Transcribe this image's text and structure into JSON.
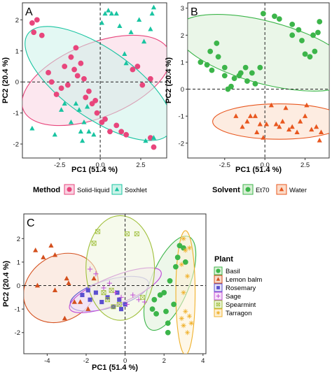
{
  "chart_data": [
    {
      "panel": "A",
      "type": "scatter",
      "xlabel": "PC1 (51.4 %)",
      "ylabel": "PC2 (20.4 %)",
      "xlim": [
        -4.8,
        4.1
      ],
      "ylim": [
        -2.45,
        2.55
      ],
      "xticks": [
        -2.5,
        0.0,
        2.5
      ],
      "yticks": [
        -2,
        -1,
        0,
        1,
        2
      ],
      "legend": {
        "title": "Method",
        "position": "bottom"
      },
      "ellipses": [
        {
          "series": 0,
          "cx": -0.25,
          "cy": 0.05,
          "rx": 3.5,
          "ry": 1.65,
          "angle": -22
        },
        {
          "series": 1,
          "cx": -0.1,
          "cy": -0.05,
          "rx": 3.85,
          "ry": 1.55,
          "angle": 35
        }
      ],
      "series": [
        {
          "name": "Solid-liquid",
          "marker": "circle",
          "color": "#e8467c",
          "fill": "#f9d3e2",
          "points": [
            [
              -4.2,
              1.9
            ],
            [
              -4.1,
              1.6
            ],
            [
              -3.9,
              2.0
            ],
            [
              -3.6,
              1.5
            ],
            [
              -3.2,
              0.3
            ],
            [
              -3.0,
              0.0
            ],
            [
              -2.7,
              -0.4
            ],
            [
              -2.4,
              -0.2
            ],
            [
              -2.2,
              0.5
            ],
            [
              -2.0,
              -0.1
            ],
            [
              -1.8,
              0.8
            ],
            [
              -1.6,
              0.4
            ],
            [
              -1.4,
              0.2
            ],
            [
              -1.2,
              0.6
            ],
            [
              -1.0,
              0.1
            ],
            [
              -0.9,
              -0.5
            ],
            [
              -0.7,
              -0.3
            ],
            [
              -0.5,
              -0.7
            ],
            [
              -0.3,
              -0.6
            ],
            [
              -0.2,
              -1.0
            ],
            [
              0.1,
              -1.3
            ],
            [
              0.3,
              -1.2
            ],
            [
              0.6,
              -1.6
            ],
            [
              1.0,
              -1.4
            ],
            [
              1.3,
              -1.6
            ],
            [
              1.6,
              -1.7
            ],
            [
              2.0,
              0.4
            ],
            [
              2.3,
              0.5
            ],
            [
              2.6,
              -0.1
            ],
            [
              3.1,
              -1.8
            ],
            [
              3.3,
              -2.1
            ],
            [
              3.1,
              0.1
            ],
            [
              -1.5,
              1.1
            ]
          ]
        },
        {
          "name": "Soxhlet",
          "marker": "triangle",
          "color": "#19c4a1",
          "fill": "#ccf3e9",
          "points": [
            [
              -4.2,
              -1.5
            ],
            [
              -2.8,
              -1.7
            ],
            [
              -2.4,
              -0.9
            ],
            [
              -2.2,
              -0.7
            ],
            [
              -1.8,
              -1.3
            ],
            [
              -1.5,
              -0.7
            ],
            [
              -1.3,
              -0.9
            ],
            [
              -1.2,
              -1.6
            ],
            [
              -1.0,
              -1.3
            ],
            [
              -0.8,
              -0.8
            ],
            [
              -0.7,
              -1.6
            ],
            [
              -0.4,
              -1.7
            ],
            [
              0.1,
              1.9
            ],
            [
              0.3,
              2.2
            ],
            [
              0.5,
              2.3
            ],
            [
              0.7,
              2.2
            ],
            [
              1.0,
              2.2
            ],
            [
              1.2,
              1.8
            ],
            [
              1.5,
              0.9
            ],
            [
              1.9,
              1.6
            ],
            [
              2.4,
              2.0
            ],
            [
              2.7,
              1.3
            ],
            [
              3.1,
              1.7
            ],
            [
              3.2,
              2.2
            ],
            [
              3.3,
              2.4
            ],
            [
              2.8,
              -1.9
            ],
            [
              3.3,
              -1.8
            ],
            [
              -1.1,
              -1.9
            ],
            [
              1.6,
              0.6
            ]
          ]
        }
      ]
    },
    {
      "panel": "B",
      "type": "scatter",
      "xlabel": "PC1 (51.4 %)",
      "ylabel": "PC2 (20.4 %)",
      "xlim": [
        -4.8,
        4.0
      ],
      "ylim": [
        -2.55,
        3.2
      ],
      "xticks": [
        -2.5,
        0.0,
        2.5
      ],
      "yticks": [
        -2,
        -1,
        0,
        1,
        2,
        3
      ],
      "legend": {
        "title": "Solvent",
        "position": "bottom"
      },
      "ellipses": [
        {
          "series": 0,
          "cx": 0.05,
          "cy": 1.35,
          "rx": 4.4,
          "ry": 1.5,
          "angle": 15
        },
        {
          "series": 1,
          "cx": 0.9,
          "cy": -1.2,
          "rx": 3.2,
          "ry": 0.85,
          "angle": 0
        }
      ],
      "series": [
        {
          "name": "Et70",
          "marker": "circle",
          "color": "#3cb54a",
          "fill": "#d8efd5",
          "points": [
            [
              -4.0,
              1.0
            ],
            [
              -3.6,
              0.9
            ],
            [
              -3.3,
              0.7
            ],
            [
              -3.4,
              1.4
            ],
            [
              -3.0,
              1.7
            ],
            [
              -2.9,
              1.2
            ],
            [
              -2.5,
              0.8
            ],
            [
              -2.5,
              0.5
            ],
            [
              -2.3,
              0.0
            ],
            [
              -2.1,
              0.1
            ],
            [
              -1.9,
              0.4
            ],
            [
              -1.6,
              0.5
            ],
            [
              -1.5,
              0.6
            ],
            [
              -1.2,
              0.8
            ],
            [
              -1.1,
              0.3
            ],
            [
              -0.8,
              0.6
            ],
            [
              -0.6,
              0.2
            ],
            [
              -0.3,
              0.8
            ],
            [
              -0.1,
              2.8
            ],
            [
              0.6,
              2.7
            ],
            [
              0.9,
              2.6
            ],
            [
              1.7,
              2.4
            ],
            [
              1.7,
              2.0
            ],
            [
              2.1,
              2.2
            ],
            [
              2.3,
              1.8
            ],
            [
              2.5,
              1.3
            ],
            [
              2.8,
              1.2
            ],
            [
              3.0,
              2.0
            ],
            [
              3.1,
              1.4
            ],
            [
              3.3,
              2.1
            ],
            [
              3.4,
              2.5
            ]
          ]
        },
        {
          "name": "Water",
          "marker": "triangle",
          "color": "#e8571f",
          "fill": "#fbdcc9",
          "points": [
            [
              -1.8,
              -1.0
            ],
            [
              -1.4,
              -1.4
            ],
            [
              -1.1,
              -1.2
            ],
            [
              -0.9,
              -1.0
            ],
            [
              -0.6,
              -1.0
            ],
            [
              -0.5,
              -1.6
            ],
            [
              -0.3,
              -1.3
            ],
            [
              -0.1,
              -1.8
            ],
            [
              0.1,
              -1.3
            ],
            [
              0.4,
              -0.6
            ],
            [
              0.7,
              -1.3
            ],
            [
              0.9,
              -1.4
            ],
            [
              1.1,
              -1.2
            ],
            [
              1.3,
              -0.7
            ],
            [
              1.5,
              -1.5
            ],
            [
              1.7,
              -1.4
            ],
            [
              2.0,
              -1.6
            ],
            [
              2.2,
              -1.2
            ],
            [
              2.5,
              -1.0
            ],
            [
              2.6,
              -0.6
            ],
            [
              2.9,
              -1.5
            ],
            [
              3.2,
              -1.4
            ],
            [
              3.4,
              -1.9
            ],
            [
              3.5,
              -1.6
            ]
          ]
        }
      ]
    },
    {
      "panel": "C",
      "type": "scatter",
      "xlabel": "PC1 (51.4 %)",
      "ylabel": "PC2 (20.4 %)",
      "xlim": [
        -5.2,
        4.15
      ],
      "ylim": [
        -2.9,
        3.05
      ],
      "xticks": [
        -4,
        -2,
        0,
        2,
        4
      ],
      "yticks": [
        -2,
        -1,
        0,
        1,
        2
      ],
      "legend": {
        "title": "Plant",
        "position": "right"
      },
      "ellipses": [
        {
          "series": 0,
          "cx": 2.3,
          "cy": 0.1,
          "rx": 2.35,
          "ry": 0.9,
          "angle": -68
        },
        {
          "series": 1,
          "cx": -3.3,
          "cy": -0.1,
          "rx": 1.85,
          "ry": 1.5,
          "angle": -35
        },
        {
          "series": 2,
          "cx": -0.8,
          "cy": -0.35,
          "rx": 1.9,
          "ry": 0.65,
          "angle": -16
        },
        {
          "series": 3,
          "cx": -0.5,
          "cy": -0.2,
          "rx": 2.3,
          "ry": 0.65,
          "angle": -22
        },
        {
          "series": 4,
          "cx": -0.25,
          "cy": 0.75,
          "rx": 1.6,
          "ry": 2.45,
          "angle": 0
        },
        {
          "series": 5,
          "cx": 3.1,
          "cy": -0.3,
          "rx": 0.45,
          "ry": 2.9,
          "angle": 0
        }
      ],
      "series": [
        {
          "name": "Basil",
          "marker": "circle",
          "color": "#3cb54a",
          "fill": "#dff1d8",
          "points": [
            [
              1.4,
              -1.0
            ],
            [
              1.5,
              -0.6
            ],
            [
              1.6,
              -1.2
            ],
            [
              1.8,
              -0.4
            ],
            [
              2.0,
              -0.3
            ],
            [
              2.1,
              -1.1
            ],
            [
              2.2,
              -1.6
            ],
            [
              2.3,
              0.2
            ],
            [
              2.5,
              -0.8
            ],
            [
              2.6,
              0.8
            ],
            [
              2.7,
              1.2
            ],
            [
              2.8,
              1.7
            ],
            [
              3.0,
              1.6
            ],
            [
              3.1,
              1.0
            ],
            [
              2.2,
              -2.0
            ]
          ]
        },
        {
          "name": "Lemon balm",
          "marker": "triangle",
          "color": "#d4501e",
          "fill": "#f7dccd",
          "points": [
            [
              -4.6,
              1.5
            ],
            [
              -4.2,
              1.2
            ],
            [
              -3.8,
              1.7
            ],
            [
              -3.6,
              1.3
            ],
            [
              -3.0,
              0.3
            ],
            [
              -2.9,
              0.1
            ],
            [
              -3.6,
              -0.2
            ],
            [
              -2.3,
              -0.7
            ],
            [
              -4.5,
              0.0
            ],
            [
              -3.1,
              -1.4
            ],
            [
              -2.6,
              -0.7
            ],
            [
              -1.9,
              -1.0
            ],
            [
              -1.6,
              0.3
            ]
          ]
        },
        {
          "name": "Rosemary",
          "marker": "square",
          "color": "#5a4fcf",
          "fill": "#e5e3f8",
          "points": [
            [
              -2.2,
              -0.4
            ],
            [
              -1.8,
              -0.6
            ],
            [
              -1.5,
              -0.3
            ],
            [
              -1.2,
              -0.7
            ],
            [
              -0.9,
              -0.5
            ],
            [
              -0.6,
              -0.9
            ],
            [
              -0.3,
              -0.6
            ],
            [
              0.0,
              -0.8
            ],
            [
              -1.9,
              -0.2
            ],
            [
              -0.4,
              -0.3
            ],
            [
              -0.2,
              -1.0
            ]
          ]
        },
        {
          "name": "Sage",
          "marker": "plus",
          "color": "#c04fd6",
          "fill": "#f5e1f8",
          "points": [
            [
              -1.5,
              0.5
            ],
            [
              -1.1,
              -0.1
            ],
            [
              -0.8,
              0.1
            ],
            [
              -0.5,
              -0.3
            ],
            [
              -0.2,
              -0.5
            ],
            [
              0.1,
              -0.8
            ],
            [
              0.4,
              -0.4
            ],
            [
              0.7,
              -0.6
            ],
            [
              1.0,
              -0.7
            ],
            [
              -1.8,
              0.7
            ]
          ]
        },
        {
          "name": "Spearmint",
          "marker": "xbox",
          "color": "#9fbf3a",
          "fill": "#eef6dc",
          "points": [
            [
              -1.4,
              2.3
            ],
            [
              -1.6,
              1.8
            ],
            [
              -0.9,
              -0.6
            ],
            [
              -0.6,
              -0.9
            ],
            [
              -0.3,
              -0.8
            ],
            [
              0.1,
              2.2
            ],
            [
              0.6,
              2.2
            ],
            [
              0.9,
              -0.5
            ],
            [
              -1.1,
              -0.3
            ],
            [
              -0.7,
              -0.2
            ]
          ]
        },
        {
          "name": "Tarragon",
          "marker": "star",
          "color": "#f0b12c",
          "fill": "#fdf0d4",
          "points": [
            [
              3.0,
              2.0
            ],
            [
              3.1,
              1.5
            ],
            [
              3.3,
              1.6
            ],
            [
              2.9,
              0.9
            ],
            [
              3.2,
              0.4
            ],
            [
              3.0,
              -0.3
            ],
            [
              3.1,
              -1.1
            ],
            [
              3.3,
              -1.3
            ],
            [
              3.4,
              -1.6
            ],
            [
              3.0,
              -1.7
            ],
            [
              3.2,
              -2.0
            ],
            [
              2.9,
              -1.4
            ]
          ]
        }
      ]
    }
  ]
}
